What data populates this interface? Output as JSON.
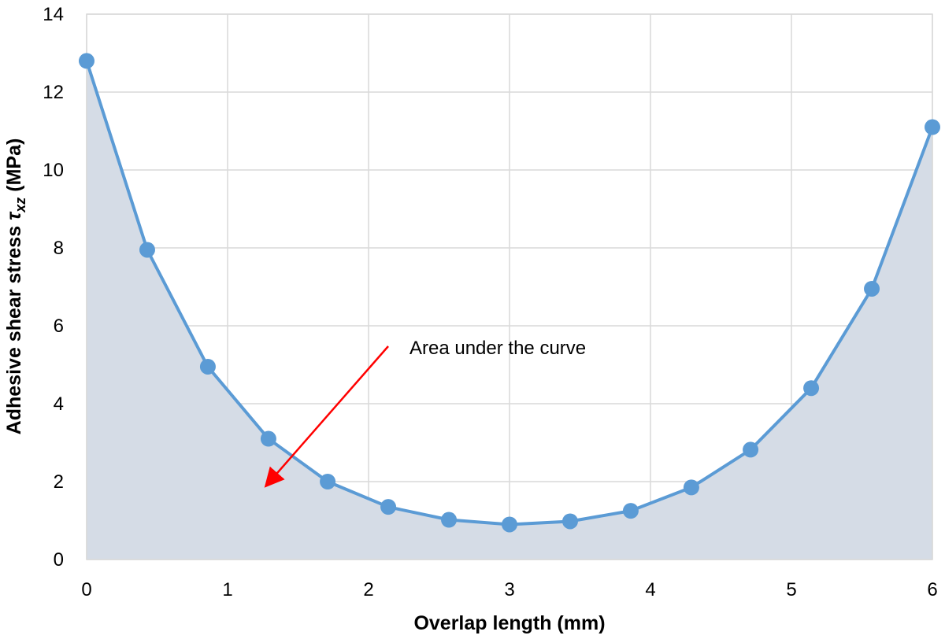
{
  "chart_data": {
    "type": "line",
    "title": "",
    "xlabel": "Overlap length (mm)",
    "ylabel_parts": {
      "prefix": "Adhesive  shear stress ",
      "symbol": "τ",
      "subscript": "xz",
      "suffix": " (MPa)"
    },
    "xlim": [
      0,
      6
    ],
    "ylim": [
      0,
      14
    ],
    "xticks": [
      "0",
      "1",
      "2",
      "3",
      "4",
      "5",
      "6"
    ],
    "yticks": [
      "0",
      "2",
      "4",
      "6",
      "8",
      "10",
      "12",
      "14"
    ],
    "grid": true,
    "area_fill": true,
    "series": [
      {
        "x": [
          0,
          0.43,
          0.86,
          1.29,
          1.71,
          2.14,
          2.57,
          3.0,
          3.43,
          3.86,
          4.29,
          4.71,
          5.14,
          5.57,
          6.0
        ],
        "y": [
          12.8,
          7.95,
          4.95,
          3.1,
          2.0,
          1.35,
          1.02,
          0.9,
          0.98,
          1.25,
          1.85,
          2.82,
          4.4,
          6.95,
          11.1
        ]
      }
    ],
    "annotation": {
      "text": "Area under the curve"
    },
    "colors": {
      "line": "#5B9BD5",
      "marker": "#5B9BD5",
      "area": "#D5DCE6",
      "grid": "#D9D9D9",
      "arrow": "#FF0000"
    }
  }
}
